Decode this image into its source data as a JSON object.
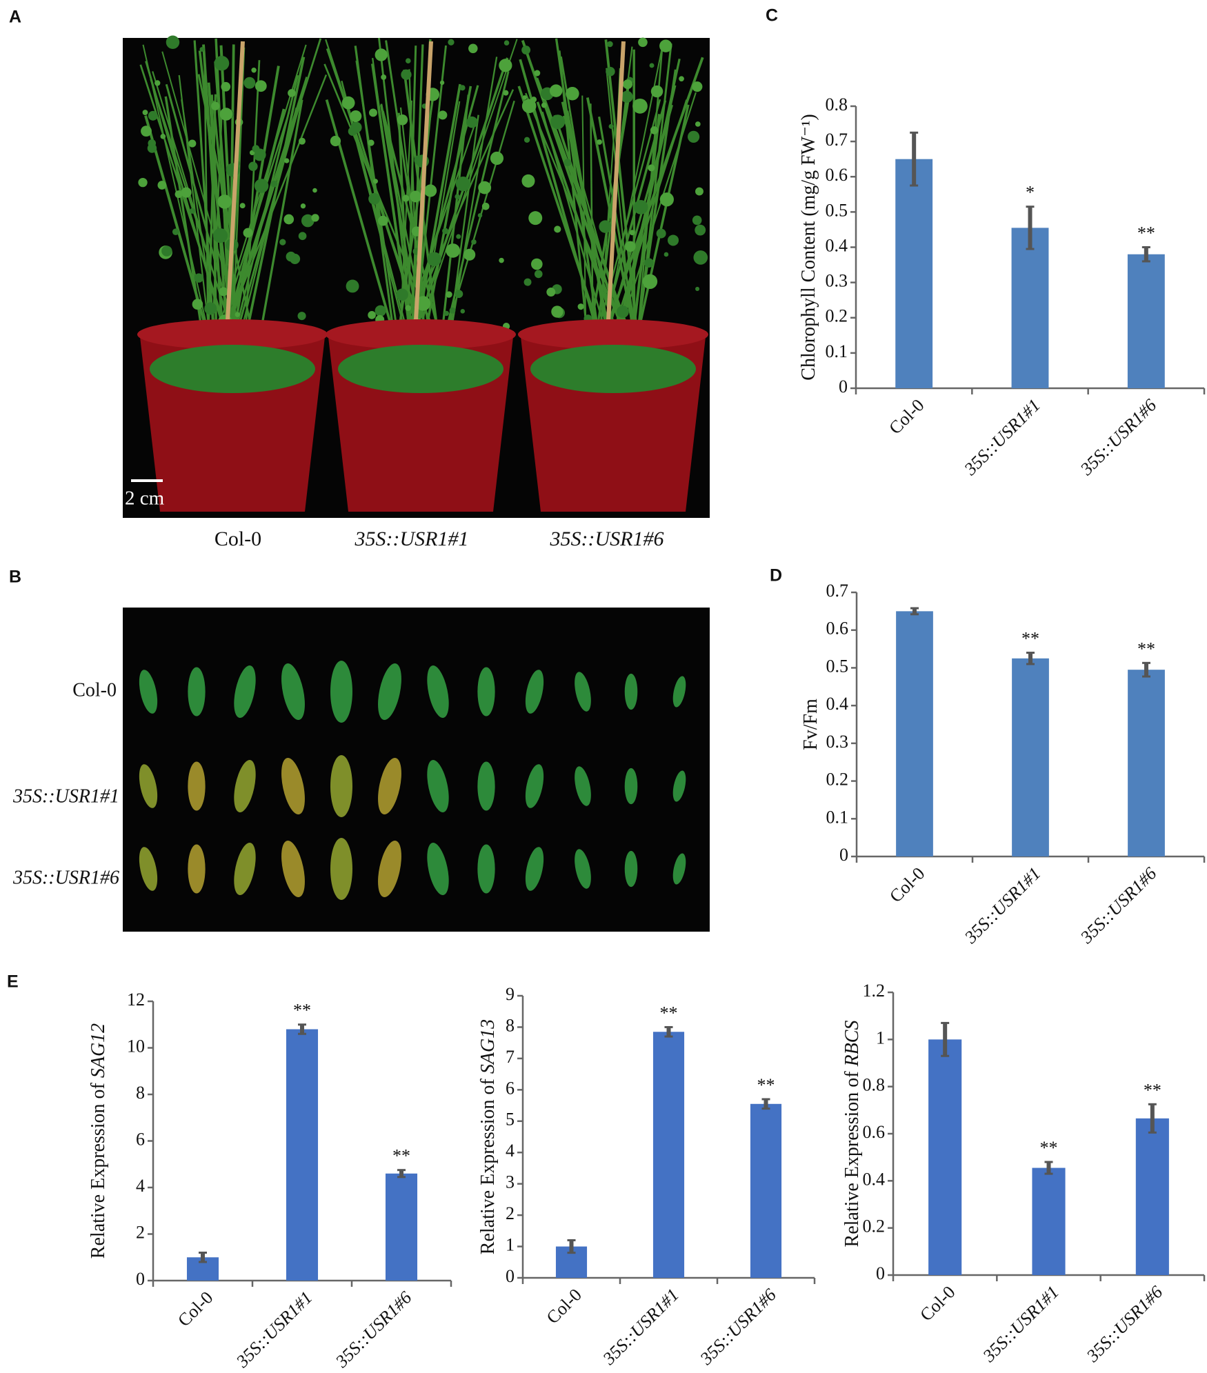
{
  "panel_labels": [
    "A",
    "B",
    "C",
    "D",
    "E"
  ],
  "photos": {
    "A": {
      "scale_bar": "2 cm",
      "labels": [
        "Col-0",
        "35S::USR1#1",
        "35S::USR1#6"
      ]
    },
    "B": {
      "row_labels": [
        "Col-0",
        "35S::USR1#1",
        "35S::USR1#6"
      ]
    }
  },
  "chart_data": [
    {
      "type": "bar",
      "y_label": "Chlorophyll Content (mg/g FW⁻¹)",
      "categories": [
        "Col-0",
        "35S::USR1#1",
        "35S::USR1#6"
      ],
      "values": [
        0.65,
        0.455,
        0.38
      ],
      "errors": [
        0.075,
        0.06,
        0.02
      ],
      "annotations": [
        null,
        "*",
        "**"
      ],
      "color": "#4f81bd",
      "ylim": [
        0,
        0.8
      ],
      "yticks": [
        0,
        0.1,
        0.2,
        0.3,
        0.4,
        0.5,
        0.6,
        0.7,
        0.8
      ]
    },
    {
      "type": "bar",
      "y_label": "Fv/Fm",
      "categories": [
        "Col-0",
        "35S::USR1#1",
        "35S::USR1#6"
      ],
      "values": [
        0.65,
        0.525,
        0.495
      ],
      "errors": [
        0.008,
        0.015,
        0.018
      ],
      "annotations": [
        null,
        "**",
        "**"
      ],
      "color": "#4f81bd",
      "ylim": [
        0,
        0.7
      ],
      "yticks": [
        0,
        0.1,
        0.2,
        0.3,
        0.4,
        0.5,
        0.6,
        0.7
      ]
    },
    {
      "type": "bar",
      "y_label": "Relative Expression of ",
      "y_label_gene": "SAG12",
      "categories": [
        "Col-0",
        "35S::USR1#1",
        "35S::USR1#6"
      ],
      "values": [
        1,
        10.8,
        4.6
      ],
      "errors": [
        0.2,
        0.2,
        0.15
      ],
      "annotations": [
        null,
        "**",
        "**"
      ],
      "color": "#4472c4",
      "ylim": [
        0,
        12
      ],
      "yticks": [
        0,
        2,
        4,
        6,
        8,
        10,
        12
      ]
    },
    {
      "type": "bar",
      "y_label": "Relative Expression of ",
      "y_label_gene": "SAG13",
      "categories": [
        "Col-0",
        "35S::USR1#1",
        "35S::USR1#6"
      ],
      "values": [
        1,
        7.85,
        5.55
      ],
      "errors": [
        0.2,
        0.15,
        0.15
      ],
      "annotations": [
        null,
        "**",
        "**"
      ],
      "color": "#4472c4",
      "ylim": [
        0,
        9
      ],
      "yticks": [
        0,
        1,
        2,
        3,
        4,
        5,
        6,
        7,
        8,
        9
      ]
    },
    {
      "type": "bar",
      "y_label": "Relative Expression of ",
      "y_label_gene": "RBCS",
      "categories": [
        "Col-0",
        "35S::USR1#1",
        "35S::USR1#6"
      ],
      "values": [
        1,
        0.455,
        0.665
      ],
      "errors": [
        0.07,
        0.025,
        0.06
      ],
      "annotations": [
        null,
        "**",
        "**"
      ],
      "color": "#4472c4",
      "ylim": [
        0,
        1.2
      ],
      "yticks": [
        0,
        0.2,
        0.4,
        0.6,
        0.8,
        1,
        1.2
      ]
    }
  ]
}
